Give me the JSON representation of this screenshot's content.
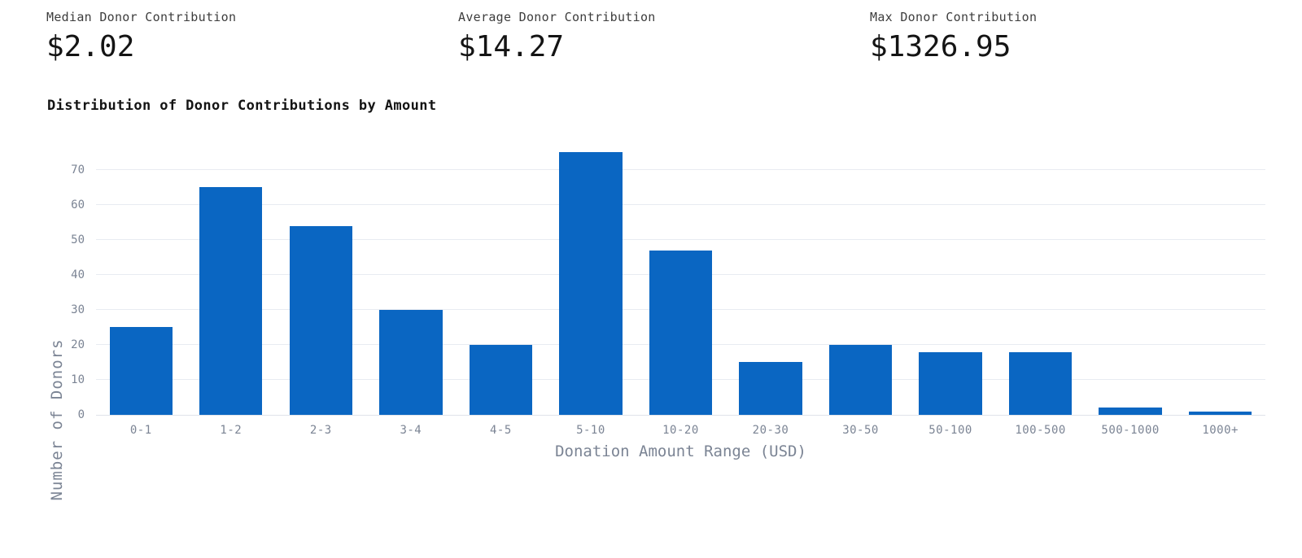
{
  "stats": [
    {
      "label": "Median Donor Contribution",
      "value": "$2.02"
    },
    {
      "label": "Average Donor Contribution",
      "value": "$14.27"
    },
    {
      "label": "Max Donor Contribution",
      "value": "$1326.95"
    }
  ],
  "chart_data": {
    "type": "bar",
    "title": "Distribution of Donor Contributions by Amount",
    "categories": [
      "0-1",
      "1-2",
      "2-3",
      "3-4",
      "4-5",
      "5-10",
      "10-20",
      "20-30",
      "30-50",
      "50-100",
      "100-500",
      "500-1000",
      "1000+"
    ],
    "values": [
      25,
      65,
      54,
      30,
      20,
      75,
      47,
      15,
      20,
      18,
      18,
      2,
      1
    ],
    "xlabel": "Donation Amount Range (USD)",
    "ylabel": "Number of Donors",
    "ylim": [
      0,
      79
    ],
    "yticks": [
      0,
      10,
      20,
      30,
      40,
      50,
      60,
      70
    ],
    "grid": "horizontal",
    "legend": "none"
  },
  "colors": {
    "bar": "#0a66c2",
    "grid": "#e8ebf1",
    "zero_line": "#dfe3ea",
    "axis_text": "#7b8494",
    "title_text": "#141414",
    "stat_label_text": "#3d3d3d",
    "background": "#ffffff"
  }
}
